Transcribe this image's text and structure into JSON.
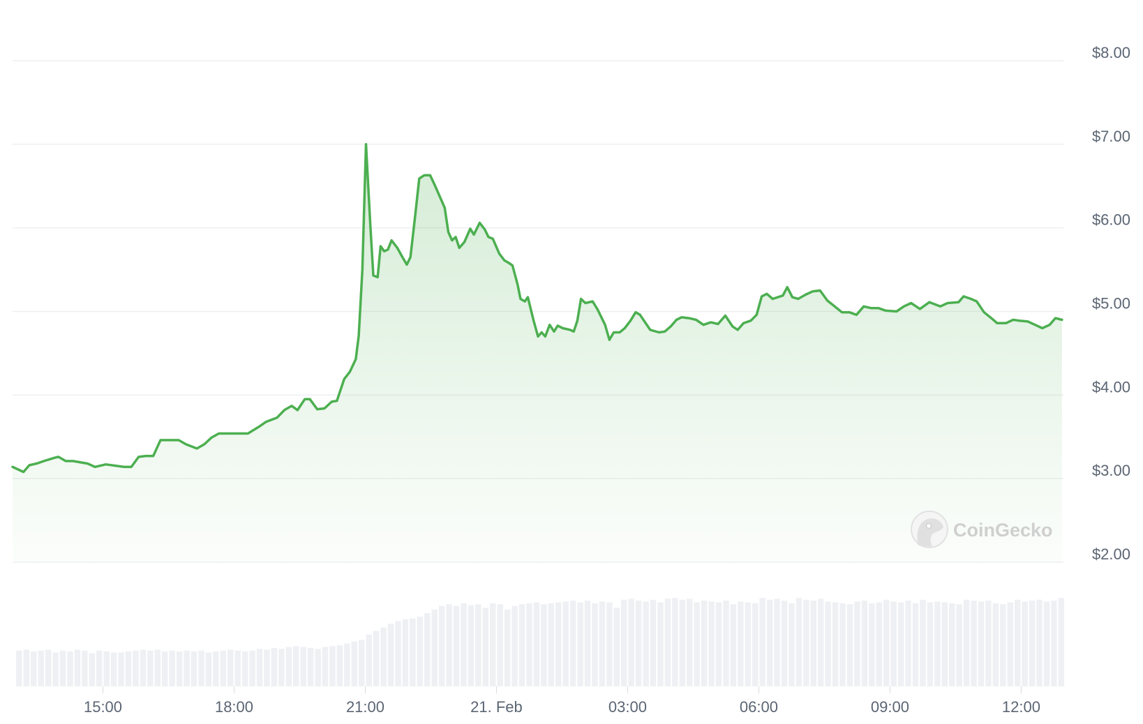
{
  "chart_data": {
    "type": "area",
    "title": "",
    "xlabel": "",
    "ylabel": "",
    "ylim": [
      2,
      8
    ],
    "yticks": [
      "$8.00",
      "$7.00",
      "$6.00",
      "$5.00",
      "$4.00",
      "$3.00",
      "$2.00"
    ],
    "ytick_values": [
      8,
      7,
      6,
      5,
      4,
      3,
      2
    ],
    "xticks": [
      {
        "label": "15:00",
        "time": "20 Feb 15:00"
      },
      {
        "label": "18:00",
        "time": "20 Feb 18:00"
      },
      {
        "label": "21:00",
        "time": "20 Feb 21:00"
      },
      {
        "label": "21. Feb",
        "time": "21 Feb 00:00"
      },
      {
        "label": "03:00",
        "time": "21 Feb 03:00"
      },
      {
        "label": "06:00",
        "time": "21 Feb 06:00"
      },
      {
        "label": "09:00",
        "time": "21 Feb 09:00"
      },
      {
        "label": "12:00",
        "time": "21 Feb 12:00"
      }
    ],
    "xlim": [
      "20 Feb 12:56",
      "21 Feb 12:58"
    ],
    "grid": true,
    "line_color": "#4caf50",
    "fill_color": "#4caf50",
    "volume_color": "#eef0f4",
    "watermark": "CoinGecko",
    "series": [
      {
        "points": [
          [
            "20 Feb 12:56",
            3.14
          ],
          [
            "20 Feb 13:11",
            3.08
          ],
          [
            "20 Feb 13:19",
            3.16
          ],
          [
            "20 Feb 13:29",
            3.18
          ],
          [
            "20 Feb 13:39",
            3.21
          ],
          [
            "20 Feb 13:54",
            3.25
          ],
          [
            "20 Feb 13:59",
            3.26
          ],
          [
            "20 Feb 14:09",
            3.21
          ],
          [
            "20 Feb 14:19",
            3.21
          ],
          [
            "20 Feb 14:39",
            3.18
          ],
          [
            "20 Feb 14:49",
            3.14
          ],
          [
            "20 Feb 15:04",
            3.17
          ],
          [
            "20 Feb 15:29",
            3.14
          ],
          [
            "20 Feb 15:39",
            3.14
          ],
          [
            "20 Feb 15:49",
            3.26
          ],
          [
            "20 Feb 15:59",
            3.27
          ],
          [
            "20 Feb 16:09",
            3.27
          ],
          [
            "20 Feb 16:19",
            3.46
          ],
          [
            "20 Feb 16:29",
            3.46
          ],
          [
            "20 Feb 16:44",
            3.46
          ],
          [
            "20 Feb 16:54",
            3.41
          ],
          [
            "20 Feb 17:09",
            3.36
          ],
          [
            "20 Feb 17:19",
            3.41
          ],
          [
            "20 Feb 17:29",
            3.49
          ],
          [
            "20 Feb 17:39",
            3.54
          ],
          [
            "20 Feb 17:59",
            3.54
          ],
          [
            "20 Feb 18:19",
            3.54
          ],
          [
            "20 Feb 18:34",
            3.62
          ],
          [
            "20 Feb 18:44",
            3.68
          ],
          [
            "20 Feb 18:59",
            3.73
          ],
          [
            "20 Feb 19:09",
            3.82
          ],
          [
            "20 Feb 19:19",
            3.87
          ],
          [
            "20 Feb 19:27",
            3.82
          ],
          [
            "20 Feb 19:37",
            3.95
          ],
          [
            "20 Feb 19:44",
            3.95
          ],
          [
            "20 Feb 19:54",
            3.83
          ],
          [
            "20 Feb 20:04",
            3.84
          ],
          [
            "20 Feb 20:14",
            3.92
          ],
          [
            "20 Feb 20:21",
            3.93
          ],
          [
            "20 Feb 20:31",
            4.19
          ],
          [
            "20 Feb 20:39",
            4.28
          ],
          [
            "20 Feb 20:47",
            4.43
          ],
          [
            "20 Feb 20:51",
            4.71
          ],
          [
            "20 Feb 20:56",
            5.5
          ],
          [
            "20 Feb 21:01",
            7.0
          ],
          [
            "20 Feb 21:07",
            6.02
          ],
          [
            "20 Feb 21:11",
            5.43
          ],
          [
            "20 Feb 21:17",
            5.41
          ],
          [
            "20 Feb 21:21",
            5.78
          ],
          [
            "20 Feb 21:26",
            5.72
          ],
          [
            "20 Feb 21:31",
            5.74
          ],
          [
            "20 Feb 21:36",
            5.85
          ],
          [
            "20 Feb 21:44",
            5.76
          ],
          [
            "20 Feb 21:51",
            5.65
          ],
          [
            "20 Feb 21:57",
            5.56
          ],
          [
            "20 Feb 22:02",
            5.65
          ],
          [
            "20 Feb 22:08",
            6.11
          ],
          [
            "20 Feb 22:14",
            6.59
          ],
          [
            "20 Feb 22:21",
            6.63
          ],
          [
            "20 Feb 22:29",
            6.63
          ],
          [
            "20 Feb 22:36",
            6.5
          ],
          [
            "20 Feb 22:49",
            6.24
          ],
          [
            "20 Feb 22:54",
            5.95
          ],
          [
            "20 Feb 22:59",
            5.85
          ],
          [
            "20 Feb 23:04",
            5.89
          ],
          [
            "20 Feb 23:09",
            5.76
          ],
          [
            "20 Feb 23:16",
            5.83
          ],
          [
            "20 Feb 23:24",
            5.99
          ],
          [
            "20 Feb 23:29",
            5.92
          ],
          [
            "20 Feb 23:37",
            6.06
          ],
          [
            "20 Feb 23:44",
            5.98
          ],
          [
            "20 Feb 23:49",
            5.89
          ],
          [
            "20 Feb 23:55",
            5.87
          ],
          [
            "21 Feb 00:04",
            5.69
          ],
          [
            "21 Feb 00:11",
            5.61
          ],
          [
            "21 Feb 00:17",
            5.58
          ],
          [
            "21 Feb 00:22",
            5.55
          ],
          [
            "21 Feb 00:29",
            5.32
          ],
          [
            "21 Feb 00:33",
            5.15
          ],
          [
            "21 Feb 00:39",
            5.12
          ],
          [
            "21 Feb 00:43",
            5.17
          ],
          [
            "21 Feb 00:51",
            4.89
          ],
          [
            "21 Feb 00:57",
            4.7
          ],
          [
            "21 Feb 01:02",
            4.75
          ],
          [
            "21 Feb 01:07",
            4.7
          ],
          [
            "21 Feb 01:13",
            4.84
          ],
          [
            "21 Feb 01:19",
            4.76
          ],
          [
            "21 Feb 01:24",
            4.83
          ],
          [
            "21 Feb 01:31",
            4.8
          ],
          [
            "21 Feb 01:41",
            4.78
          ],
          [
            "21 Feb 01:46",
            4.76
          ],
          [
            "21 Feb 01:51",
            4.89
          ],
          [
            "21 Feb 01:56",
            5.15
          ],
          [
            "21 Feb 02:02",
            5.1
          ],
          [
            "21 Feb 02:07",
            5.11
          ],
          [
            "21 Feb 02:12",
            5.12
          ],
          [
            "21 Feb 02:19",
            5.02
          ],
          [
            "21 Feb 02:29",
            4.84
          ],
          [
            "21 Feb 02:35",
            4.66
          ],
          [
            "21 Feb 02:41",
            4.75
          ],
          [
            "21 Feb 02:49",
            4.75
          ],
          [
            "21 Feb 02:56",
            4.8
          ],
          [
            "21 Feb 03:04",
            4.89
          ],
          [
            "21 Feb 03:11",
            4.99
          ],
          [
            "21 Feb 03:17",
            4.96
          ],
          [
            "21 Feb 03:24",
            4.87
          ],
          [
            "21 Feb 03:31",
            4.78
          ],
          [
            "21 Feb 03:43",
            4.75
          ],
          [
            "21 Feb 03:51",
            4.76
          ],
          [
            "21 Feb 03:59",
            4.82
          ],
          [
            "21 Feb 04:07",
            4.9
          ],
          [
            "21 Feb 04:14",
            4.93
          ],
          [
            "21 Feb 04:24",
            4.92
          ],
          [
            "21 Feb 04:34",
            4.9
          ],
          [
            "21 Feb 04:44",
            4.84
          ],
          [
            "21 Feb 04:54",
            4.87
          ],
          [
            "21 Feb 05:04",
            4.85
          ],
          [
            "21 Feb 05:14",
            4.95
          ],
          [
            "21 Feb 05:24",
            4.82
          ],
          [
            "21 Feb 05:31",
            4.78
          ],
          [
            "21 Feb 05:39",
            4.86
          ],
          [
            "21 Feb 05:49",
            4.89
          ],
          [
            "21 Feb 05:57",
            4.96
          ],
          [
            "21 Feb 06:04",
            5.18
          ],
          [
            "21 Feb 06:11",
            5.21
          ],
          [
            "21 Feb 06:19",
            5.15
          ],
          [
            "21 Feb 06:26",
            5.17
          ],
          [
            "21 Feb 06:33",
            5.19
          ],
          [
            "21 Feb 06:39",
            5.29
          ],
          [
            "21 Feb 06:46",
            5.17
          ],
          [
            "21 Feb 06:54",
            5.15
          ],
          [
            "21 Feb 07:04",
            5.2
          ],
          [
            "21 Feb 07:14",
            5.24
          ],
          [
            "21 Feb 07:24",
            5.25
          ],
          [
            "21 Feb 07:34",
            5.13
          ],
          [
            "21 Feb 07:44",
            5.06
          ],
          [
            "21 Feb 07:54",
            4.99
          ],
          [
            "21 Feb 08:04",
            4.99
          ],
          [
            "21 Feb 08:14",
            4.96
          ],
          [
            "21 Feb 08:24",
            5.06
          ],
          [
            "21 Feb 08:34",
            5.04
          ],
          [
            "21 Feb 08:44",
            5.04
          ],
          [
            "21 Feb 08:54",
            5.01
          ],
          [
            "21 Feb 09:09",
            5.0
          ],
          [
            "21 Feb 09:19",
            5.06
          ],
          [
            "21 Feb 09:29",
            5.1
          ],
          [
            "21 Feb 09:41",
            5.03
          ],
          [
            "21 Feb 09:54",
            5.11
          ],
          [
            "21 Feb 10:09",
            5.06
          ],
          [
            "21 Feb 10:19",
            5.1
          ],
          [
            "21 Feb 10:34",
            5.11
          ],
          [
            "21 Feb 10:41",
            5.18
          ],
          [
            "21 Feb 10:51",
            5.15
          ],
          [
            "21 Feb 10:59",
            5.12
          ],
          [
            "21 Feb 11:09",
            4.99
          ],
          [
            "21 Feb 11:19",
            4.92
          ],
          [
            "21 Feb 11:27",
            4.86
          ],
          [
            "21 Feb 11:39",
            4.86
          ],
          [
            "21 Feb 11:49",
            4.9
          ],
          [
            "21 Feb 11:57",
            4.89
          ],
          [
            "21 Feb 12:09",
            4.88
          ],
          [
            "21 Feb 12:19",
            4.84
          ],
          [
            "21 Feb 12:29",
            4.8
          ],
          [
            "21 Feb 12:39",
            4.84
          ],
          [
            "21 Feb 12:47",
            4.92
          ],
          [
            "21 Feb 12:56",
            4.9
          ]
        ]
      }
    ],
    "volume": {
      "start": "20 Feb 13:00",
      "interval_minutes": 10,
      "relative_values": [
        40,
        41,
        39,
        40,
        41,
        38,
        40,
        39,
        41,
        40,
        37,
        40,
        39,
        38,
        38,
        39,
        40,
        41,
        40,
        41,
        39,
        40,
        39,
        40,
        39,
        40,
        38,
        39,
        40,
        41,
        40,
        39,
        40,
        42,
        41,
        43,
        42,
        44,
        45,
        44,
        43,
        42,
        44,
        45,
        46,
        48,
        50,
        52,
        58,
        62,
        66,
        70,
        73,
        75,
        76,
        78,
        82,
        86,
        90,
        92,
        90,
        93,
        91,
        92,
        88,
        93,
        92,
        86,
        90,
        92,
        93,
        94,
        92,
        93,
        94,
        95,
        96,
        94,
        96,
        93,
        95,
        94,
        88,
        97,
        98,
        96,
        95,
        97,
        94,
        98,
        99,
        97,
        98,
        94,
        96,
        95,
        94,
        96,
        92,
        95,
        94,
        93,
        99,
        97,
        98,
        96,
        93,
        99,
        97,
        96,
        98,
        95,
        94,
        93,
        92,
        95,
        96,
        93,
        94,
        97,
        95,
        94,
        96,
        93,
        97,
        94,
        95,
        94,
        93,
        92,
        97,
        96,
        95,
        96,
        93,
        92,
        94,
        97,
        95,
        96,
        97,
        95,
        96,
        99
      ]
    }
  }
}
